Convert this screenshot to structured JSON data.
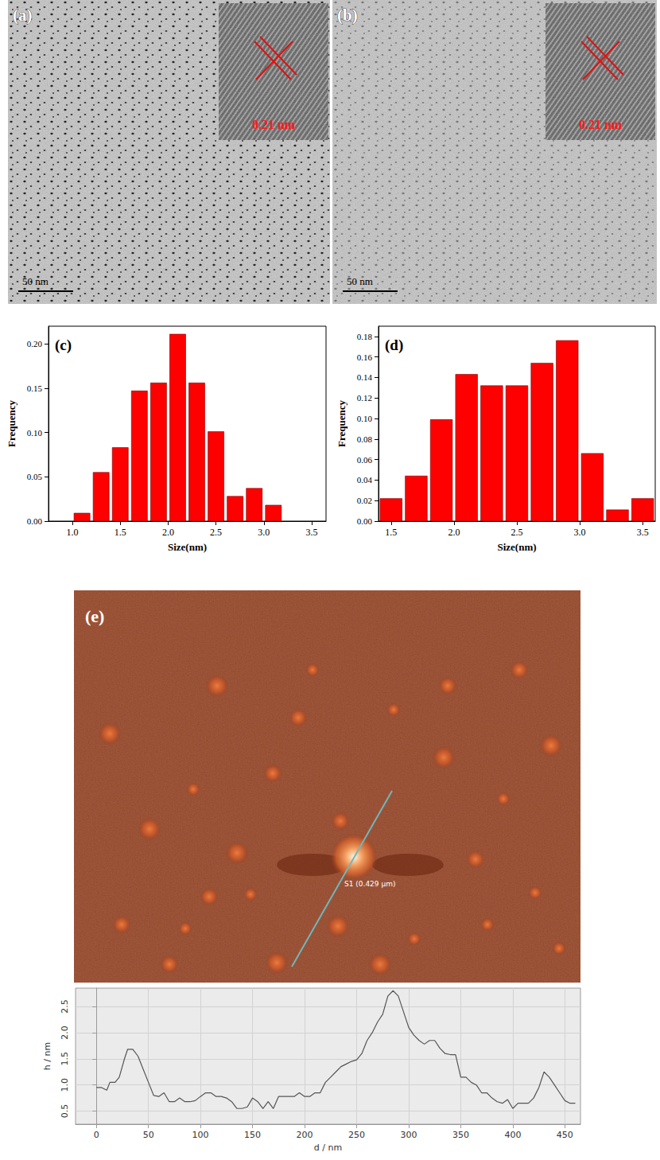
{
  "images": [
    {
      "panel": "(a)",
      "scale_bar": "50 nm",
      "inset_label": "0.21 nm"
    },
    {
      "panel": "(b)",
      "scale_bar": "50 nm",
      "inset_label": "0.21 nm"
    },
    {
      "panel": "(e)",
      "line_label": "S1 (0.429 μm)"
    }
  ],
  "chart_data": [
    {
      "type": "histogram",
      "panel": "(c)",
      "color": "#ff0000",
      "grid": false,
      "xlabel": "Size(nm)",
      "ylabel": "Frequency",
      "bins": [
        1.0,
        1.2,
        1.4,
        1.6,
        1.8,
        2.0,
        2.2,
        2.4,
        2.6,
        2.8,
        3.0,
        3.2
      ],
      "values": [
        0.009,
        0.055,
        0.083,
        0.147,
        0.156,
        0.211,
        0.156,
        0.101,
        0.028,
        0.037,
        0.018
      ],
      "xlim": [
        0.75,
        3.65
      ],
      "ylim": [
        0,
        0.22
      ],
      "xticks": [
        {
          "value": 1,
          "label": "1.0"
        },
        1.5,
        {
          "value": 2,
          "label": "2.0"
        },
        2.5,
        {
          "value": 3,
          "label": "3.0"
        },
        3.5
      ],
      "yticks": [
        {
          "value": 0,
          "label": "0.00"
        },
        0.05,
        {
          "value": 0.1,
          "label": "0.10"
        },
        0.15,
        {
          "value": 0.2,
          "label": "0.20"
        }
      ]
    },
    {
      "type": "histogram",
      "panel": "(d)",
      "color": "#ff0000",
      "grid": false,
      "xlabel": "Size(nm)",
      "ylabel": "Frequency",
      "bins": [
        1.4,
        1.6,
        1.8,
        2.0,
        2.2,
        2.4,
        2.6,
        2.8,
        3.0,
        3.2,
        3.4,
        3.6
      ],
      "values": [
        0.022,
        0.044,
        0.099,
        0.143,
        0.132,
        0.132,
        0.154,
        0.176,
        0.066,
        0.011,
        0.022
      ],
      "xlim": [
        1.4,
        3.6
      ],
      "ylim": [
        0,
        0.19
      ],
      "xticks": [
        1.5,
        {
          "value": 2,
          "label": "2.0"
        },
        2.5,
        {
          "value": 3,
          "label": "3.0"
        },
        3.5
      ],
      "yticks": [
        {
          "value": 0,
          "label": "0.00"
        },
        0.02,
        0.04,
        0.06,
        0.08,
        {
          "value": 0.1,
          "label": "0.10"
        },
        0.12,
        0.14,
        0.16,
        0.18
      ]
    },
    {
      "type": "line",
      "color": "#555555",
      "grid": true,
      "xlabel": "d / nm",
      "ylabel": "h / nm",
      "x": [
        0,
        5,
        10,
        13,
        18,
        22,
        27,
        30,
        35,
        40,
        45,
        50,
        55,
        60,
        65,
        70,
        75,
        80,
        85,
        90,
        95,
        100,
        105,
        110,
        115,
        120,
        125,
        130,
        135,
        140,
        145,
        150,
        155,
        160,
        165,
        170,
        175,
        180,
        185,
        190,
        195,
        200,
        205,
        210,
        215,
        220,
        225,
        230,
        235,
        240,
        245,
        250,
        255,
        260,
        265,
        270,
        275,
        280,
        285,
        290,
        295,
        300,
        305,
        310,
        315,
        320,
        325,
        330,
        335,
        340,
        345,
        350,
        355,
        360,
        365,
        370,
        375,
        380,
        385,
        390,
        395,
        400,
        405,
        410,
        415,
        420,
        425,
        430,
        435,
        440,
        445,
        450,
        455,
        460
      ],
      "values": [
        0.95,
        0.95,
        0.9,
        1.05,
        1.05,
        1.15,
        1.5,
        1.68,
        1.68,
        1.55,
        1.3,
        1.05,
        0.8,
        0.78,
        0.85,
        0.68,
        0.68,
        0.75,
        0.68,
        0.68,
        0.7,
        0.78,
        0.85,
        0.85,
        0.78,
        0.78,
        0.75,
        0.68,
        0.55,
        0.55,
        0.58,
        0.75,
        0.68,
        0.55,
        0.68,
        0.55,
        0.78,
        0.78,
        0.78,
        0.78,
        0.85,
        0.78,
        0.78,
        0.85,
        0.85,
        1.05,
        1.15,
        1.25,
        1.35,
        1.4,
        1.45,
        1.48,
        1.6,
        1.85,
        2.0,
        2.2,
        2.35,
        2.7,
        2.8,
        2.7,
        2.4,
        2.1,
        1.95,
        1.85,
        1.78,
        1.85,
        1.85,
        1.7,
        1.6,
        1.58,
        1.58,
        1.15,
        1.15,
        1.05,
        1.0,
        0.85,
        0.85,
        0.75,
        0.68,
        0.65,
        0.72,
        0.55,
        0.65,
        0.65,
        0.65,
        0.75,
        0.95,
        1.25,
        1.15,
        1.0,
        0.85,
        0.7,
        0.65,
        0.65
      ],
      "xlim": [
        -20,
        465
      ],
      "ylim": [
        0.25,
        2.85
      ],
      "xticks": [
        0,
        50,
        100,
        150,
        200,
        250,
        300,
        350,
        400,
        450
      ],
      "yticks": [
        0.5,
        {
          "value": 1,
          "label": "1.0"
        },
        1.5,
        {
          "value": 2,
          "label": "2.0"
        },
        2.5
      ]
    }
  ]
}
